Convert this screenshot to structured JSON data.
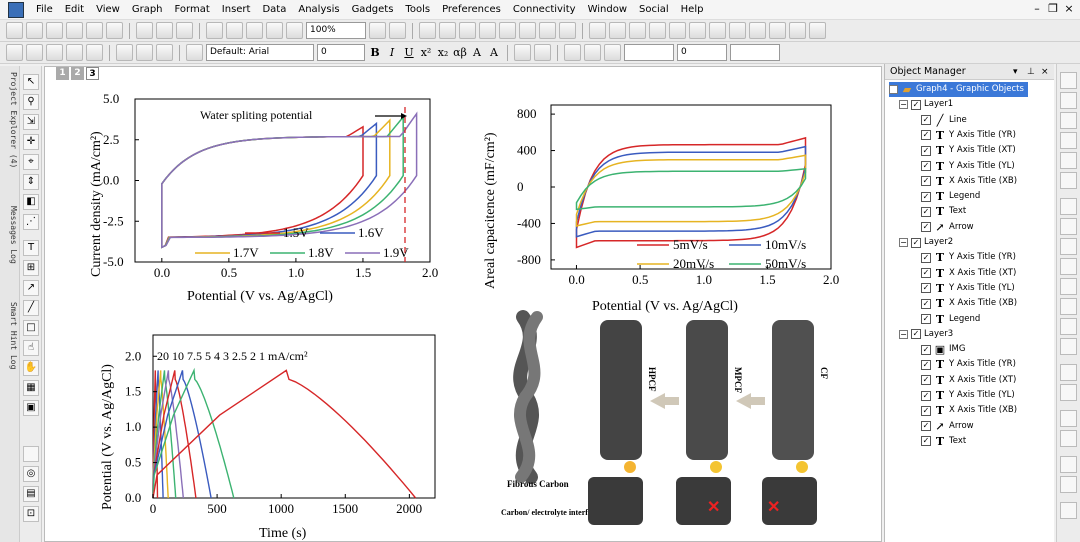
{
  "menu": {
    "items": [
      "File",
      "Edit",
      "View",
      "Graph",
      "Format",
      "Insert",
      "Data",
      "Analysis",
      "Gadgets",
      "Tools",
      "Preferences",
      "Connectivity",
      "Window",
      "Social",
      "Help"
    ]
  },
  "toolbar": {
    "zoom": "100%",
    "font": "Default: Arial",
    "font_size": "0",
    "line_width": "0"
  },
  "side_tabs": [
    "Project Explorer (4)",
    "Messages Log",
    "Smart Hint Log"
  ],
  "layer_tabs": [
    "1",
    "2",
    "3"
  ],
  "object_manager": {
    "title": "Object Manager",
    "root": "Graph4 - Graphic Objects",
    "layers": [
      {
        "name": "Layer1",
        "items": [
          {
            "icon": "line-icon",
            "label": "Line"
          },
          {
            "icon": "text-icon",
            "label": "Y Axis Title (YR)"
          },
          {
            "icon": "text-icon",
            "label": "Y Axis Title (XT)"
          },
          {
            "icon": "text-icon",
            "label": "Y Axis Title (YL)"
          },
          {
            "icon": "text-icon",
            "label": "X Axis Title (XB)"
          },
          {
            "icon": "text-icon",
            "label": "Legend"
          },
          {
            "icon": "text-icon",
            "label": "Text"
          },
          {
            "icon": "arrow-icon",
            "label": "Arrow"
          }
        ]
      },
      {
        "name": "Layer2",
        "items": [
          {
            "icon": "text-icon",
            "label": "Y Axis Title (YR)"
          },
          {
            "icon": "text-icon",
            "label": "X Axis Title (XT)"
          },
          {
            "icon": "text-icon",
            "label": "Y Axis Title (YL)"
          },
          {
            "icon": "text-icon",
            "label": "X Axis Title (XB)"
          },
          {
            "icon": "text-icon",
            "label": "Legend"
          }
        ]
      },
      {
        "name": "Layer3",
        "items": [
          {
            "icon": "image-icon",
            "label": "IMG"
          },
          {
            "icon": "text-icon",
            "label": "Y Axis Title (YR)"
          },
          {
            "icon": "text-icon",
            "label": "X Axis Title (XT)"
          },
          {
            "icon": "text-icon",
            "label": "Y Axis Title (YL)"
          },
          {
            "icon": "text-icon",
            "label": "X Axis Title (XB)"
          },
          {
            "icon": "arrow-icon",
            "label": "Arrow"
          },
          {
            "icon": "text-icon",
            "label": "Text"
          }
        ]
      }
    ]
  },
  "graph1": {
    "ylabel": "Current density (mA/cm²)",
    "xlabel": "Potential (V vs. Ag/AgCl)",
    "xticks": [
      "0.0",
      "0.5",
      "1.0",
      "1.5",
      "2.0"
    ],
    "yticks": [
      "5.0",
      "2.5",
      "0.0",
      "-2.5",
      "-5.0"
    ],
    "annotation": "Water spliting potential",
    "legend": [
      "1.5V",
      "1.6V",
      "1.7V",
      "1.8V",
      "1.9V"
    ]
  },
  "graph2": {
    "ylabel": "Areal capacitence (mF/cm²)",
    "xlabel": "Potential (V vs. Ag/AgCl)",
    "xticks": [
      "0.0",
      "0.5",
      "1.0",
      "1.5",
      "2.0"
    ],
    "yticks": [
      "800",
      "400",
      "0",
      "-400",
      "-800"
    ],
    "legend": [
      "5mV/s",
      "10mV/s",
      "20mV/s",
      "50mV/s"
    ]
  },
  "graph3": {
    "ylabel": "Potential (V vs. Ag/AgCl)",
    "xlabel": "Time (s)",
    "xticks": [
      "0",
      "500",
      "1000",
      "1500",
      "2000"
    ],
    "yticks": [
      "2.0",
      "1.5",
      "1.0",
      "0.5",
      "0.0"
    ],
    "annotation": "20 10 7.5 5 4 3 2.5 2 1 mA/cm²"
  },
  "schematic": {
    "labels": [
      "HPCF",
      "MPCF",
      "CF",
      "Fibrous Carbon",
      "Carbon/ electrolyte interface"
    ]
  },
  "chart_data": [
    {
      "type": "line",
      "title": "",
      "xlabel": "Potential (V vs. Ag/AgCl)",
      "ylabel": "Current density (mA/cm²)",
      "xlim": [
        -0.2,
        2.0
      ],
      "ylim": [
        -5.0,
        5.0
      ],
      "legend_placement": "bottom",
      "series": [
        {
          "name": "1.5V",
          "color": "#d62728",
          "vmax": 1.5
        },
        {
          "name": "1.6V",
          "color": "#3a5bbf",
          "vmax": 1.6
        },
        {
          "name": "1.7V",
          "color": "#e6b422",
          "vmax": 1.7
        },
        {
          "name": "1.8V",
          "color": "#3cb371",
          "vmax": 1.8
        },
        {
          "name": "1.9V",
          "color": "#8a6fb8",
          "vmax": 1.9
        }
      ]
    },
    {
      "type": "line",
      "title": "",
      "xlabel": "Potential (V vs. Ag/AgCl)",
      "ylabel": "Areal capacitence (mF/cm²)",
      "xlim": [
        -0.2,
        2.0
      ],
      "ylim": [
        -900,
        900
      ],
      "legend_placement": "bottom",
      "series": [
        {
          "name": "5mV/s",
          "color": "#d62728",
          "amp": 620
        },
        {
          "name": "10mV/s",
          "color": "#3a5bbf",
          "amp": 510
        },
        {
          "name": "20mV/s",
          "color": "#e6b422",
          "amp": 400
        },
        {
          "name": "50mV/s",
          "color": "#3cb371",
          "amp": 230
        }
      ]
    },
    {
      "type": "line",
      "title": "",
      "xlabel": "Time (s)",
      "ylabel": "Potential (V vs. Ag/AgCl)",
      "xlim": [
        0,
        2200
      ],
      "ylim": [
        0.0,
        2.3
      ],
      "vmax": 1.8,
      "series": [
        {
          "name": "20",
          "color": "#d62728",
          "tc": 18
        },
        {
          "name": "10",
          "color": "#3a5bbf",
          "tc": 40
        },
        {
          "name": "7.5",
          "color": "#e6b422",
          "tc": 60
        },
        {
          "name": "5",
          "color": "#3cb371",
          "tc": 90
        },
        {
          "name": "4",
          "color": "#8a6fb8",
          "tc": 120
        },
        {
          "name": "3",
          "color": "#d62728",
          "tc": 170
        },
        {
          "name": "2.5",
          "color": "#3a5bbf",
          "tc": 230
        },
        {
          "name": "2",
          "color": "#3cb371",
          "tc": 320
        },
        {
          "name": "1",
          "color": "#d62728",
          "tc": 1040
        }
      ]
    }
  ]
}
